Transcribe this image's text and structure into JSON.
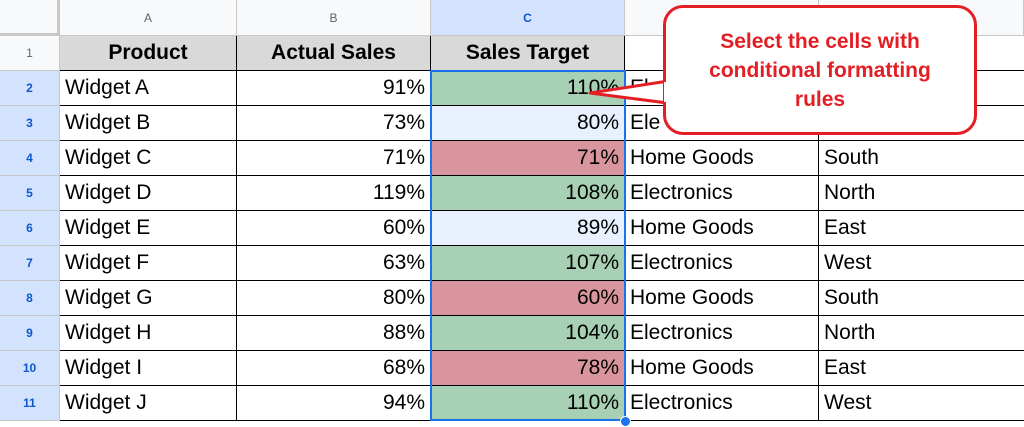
{
  "columns": [
    "A",
    "B",
    "C"
  ],
  "rows": [
    "1",
    "2",
    "3",
    "4",
    "5",
    "6",
    "7",
    "8",
    "9",
    "10",
    "11"
  ],
  "headers": [
    "Product",
    "Actual Sales",
    "Sales Target"
  ],
  "data": [
    {
      "product": "Widget A",
      "actual": "91%",
      "target": "110%",
      "category": "El",
      "region": ""
    },
    {
      "product": "Widget B",
      "actual": "73%",
      "target": "80%",
      "category": "Ele",
      "region": ""
    },
    {
      "product": "Widget C",
      "actual": "71%",
      "target": "71%",
      "category": "Home Goods",
      "region": "South"
    },
    {
      "product": "Widget D",
      "actual": "119%",
      "target": "108%",
      "category": "Electronics",
      "region": "North"
    },
    {
      "product": "Widget E",
      "actual": "60%",
      "target": "89%",
      "category": "Home Goods",
      "region": "East"
    },
    {
      "product": "Widget F",
      "actual": "63%",
      "target": "107%",
      "category": "Electronics",
      "region": "West"
    },
    {
      "product": "Widget G",
      "actual": "80%",
      "target": "60%",
      "category": "Home Goods",
      "region": "South"
    },
    {
      "product": "Widget H",
      "actual": "88%",
      "target": "104%",
      "category": "Electronics",
      "region": "North"
    },
    {
      "product": "Widget I",
      "actual": "68%",
      "target": "78%",
      "category": "Home Goods",
      "region": "East"
    },
    {
      "product": "Widget J",
      "actual": "94%",
      "target": "110%",
      "category": "Electronics",
      "region": "West"
    }
  ],
  "target_fill": [
    "green",
    "plain",
    "red",
    "green",
    "plain",
    "green",
    "red",
    "green",
    "red",
    "green"
  ],
  "colors": {
    "green": "#a8d0b4",
    "red": "#d9959d",
    "selection": "#1a73e8",
    "callout": "#e31e24"
  },
  "callout": {
    "text": "Select the cells with conditional formatting rules"
  }
}
